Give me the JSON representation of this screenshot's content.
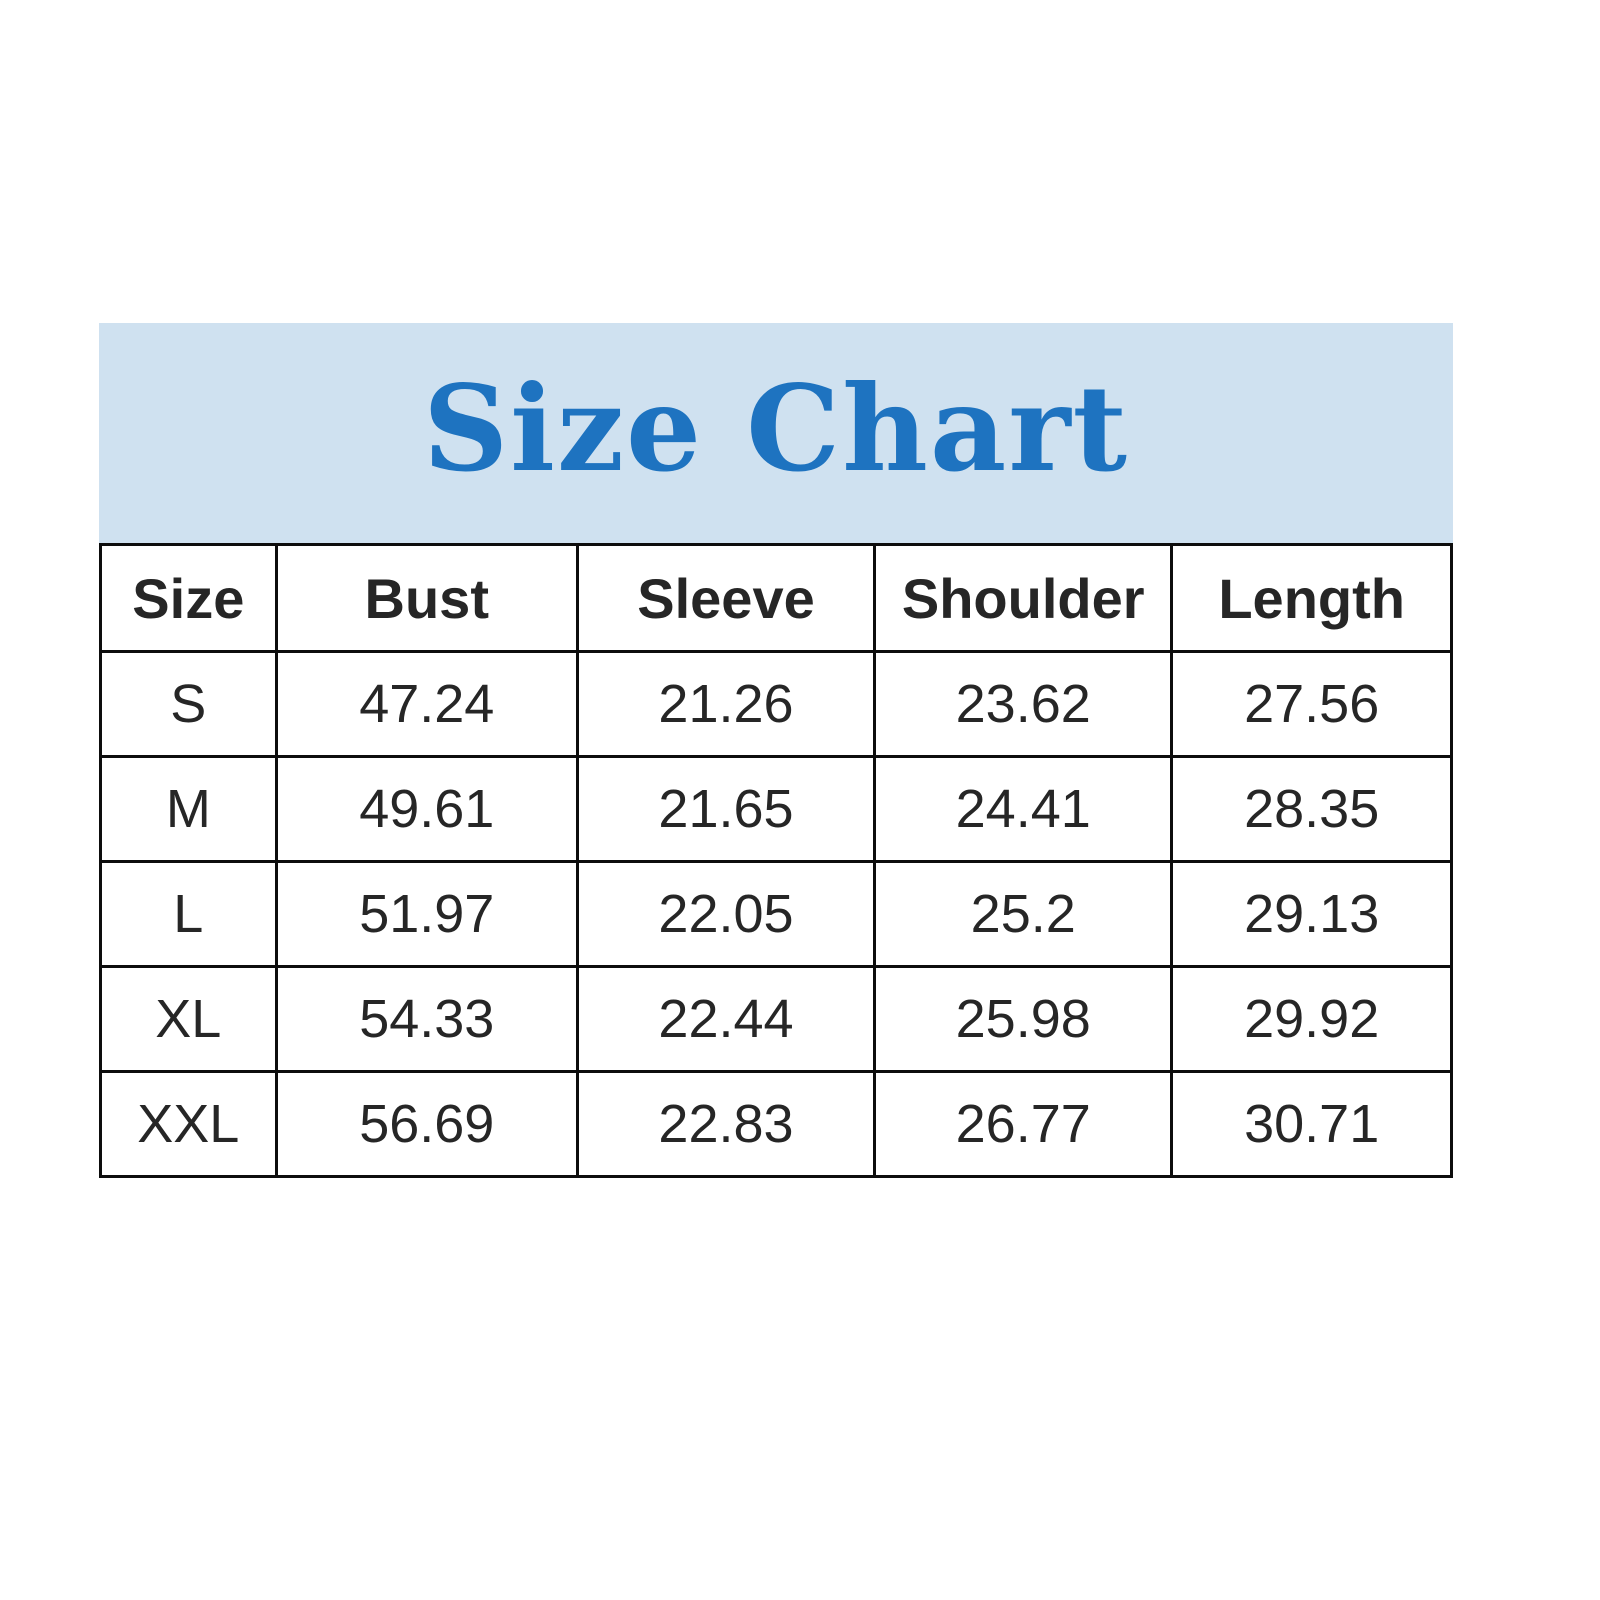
{
  "banner": {
    "title": "Size Chart",
    "bg_color": "#cfe1f0",
    "title_color": "#1e73c0"
  },
  "table": {
    "headers": [
      "Size",
      "Bust",
      "Sleeve",
      "Shoulder",
      "Length"
    ],
    "rows": [
      {
        "size": "S",
        "bust": "47.24",
        "sleeve": "21.26",
        "shoulder": "23.62",
        "length": "27.56"
      },
      {
        "size": "M",
        "bust": "49.61",
        "sleeve": "21.65",
        "shoulder": "24.41",
        "length": "28.35"
      },
      {
        "size": "L",
        "bust": "51.97",
        "sleeve": "22.05",
        "shoulder": "25.2",
        "length": "29.13"
      },
      {
        "size": "XL",
        "bust": "54.33",
        "sleeve": "22.44",
        "shoulder": "25.98",
        "length": "29.92"
      },
      {
        "size": "XXL",
        "bust": "56.69",
        "sleeve": "22.83",
        "shoulder": "26.77",
        "length": "30.71"
      }
    ]
  },
  "chart_data": {
    "type": "table",
    "title": "Size Chart",
    "columns": [
      "Size",
      "Bust",
      "Sleeve",
      "Shoulder",
      "Length"
    ],
    "rows": [
      [
        "S",
        47.24,
        21.26,
        23.62,
        27.56
      ],
      [
        "M",
        49.61,
        21.65,
        24.41,
        28.35
      ],
      [
        "L",
        51.97,
        22.05,
        25.2,
        29.13
      ],
      [
        "XL",
        54.33,
        22.44,
        25.98,
        29.92
      ],
      [
        "XXL",
        56.69,
        22.83,
        26.77,
        30.71
      ]
    ]
  }
}
